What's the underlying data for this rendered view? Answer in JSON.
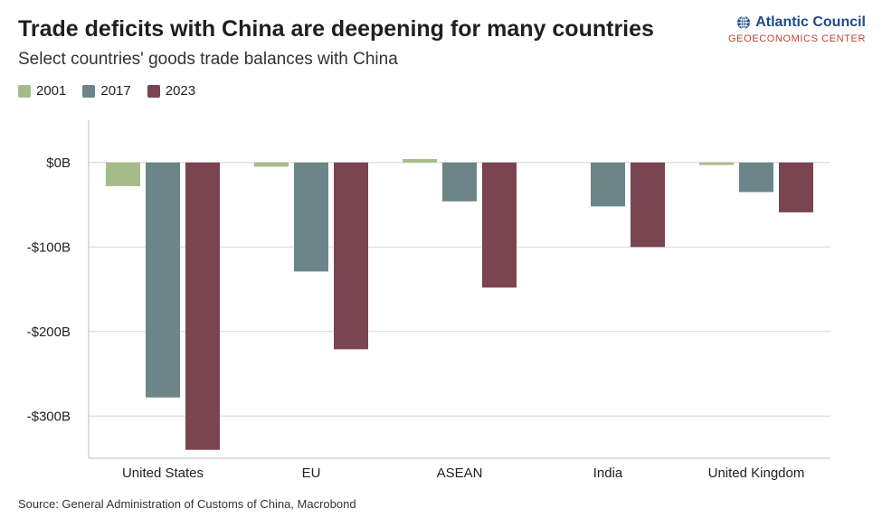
{
  "title": "Trade deficits with China are deepening for many countries",
  "subtitle": "Select countries' goods trade balances with China",
  "logo": {
    "name": "Atlantic Council",
    "sub": "GEOECONOMICS CENTER"
  },
  "source": "Source: General Administration of Customs of China, Macrobond",
  "chart_data": {
    "type": "bar",
    "title": "Trade deficits with China are deepening for many countries",
    "subtitle": "Select countries' goods trade balances with China",
    "xlabel": "",
    "ylabel": "",
    "categories": [
      "United States",
      "EU",
      "ASEAN",
      "India",
      "United Kingdom"
    ],
    "series": [
      {
        "name": "2001",
        "color": "#a6bb8a",
        "values": [
          -28,
          -5,
          4,
          0,
          -3
        ]
      },
      {
        "name": "2017",
        "color": "#6b8588",
        "values": [
          -278,
          -129,
          -46,
          -52,
          -35
        ]
      },
      {
        "name": "2023",
        "color": "#7a4550",
        "values": [
          -340,
          -221,
          -148,
          -100,
          -59
        ]
      }
    ],
    "yticks": [
      0,
      -100,
      -200,
      -300
    ],
    "ytick_labels": [
      "$0B",
      "-$100B",
      "-$200B",
      "-$300B"
    ],
    "ylim": [
      -350,
      50
    ],
    "grid": true,
    "legend": "top-left"
  }
}
